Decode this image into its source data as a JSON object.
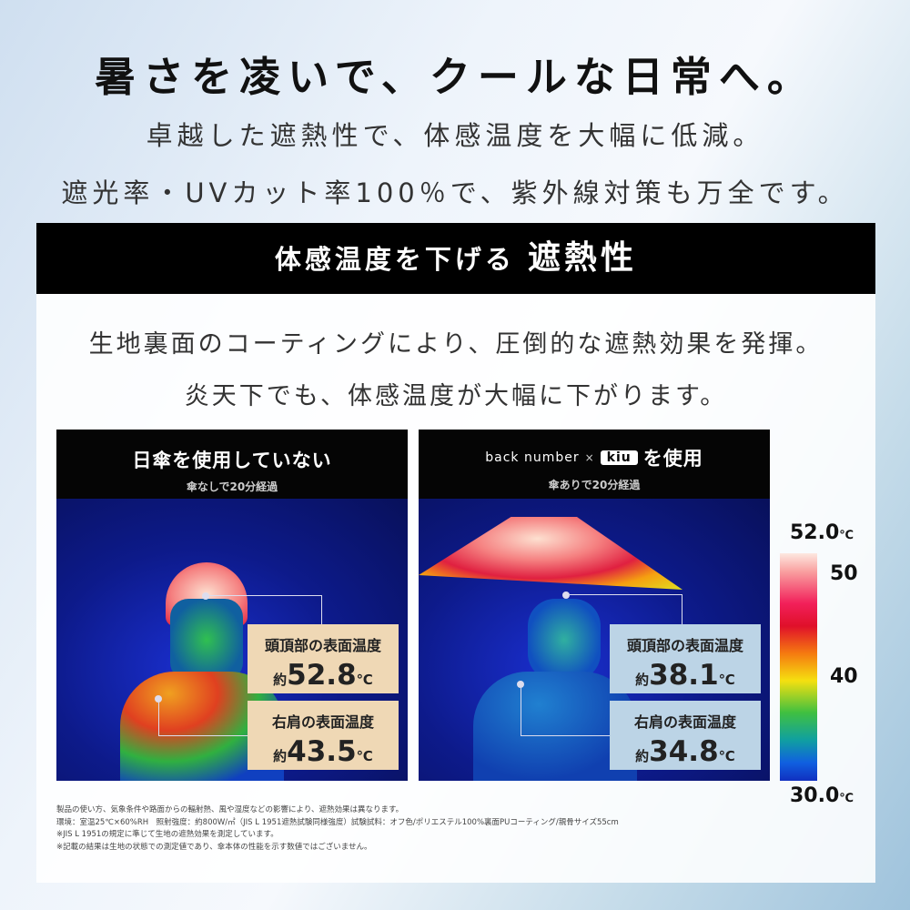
{
  "headline": "暑さを凌いで、クールな日常へ。",
  "subline1": "卓越した遮熱性で、体感温度を大幅に低減。",
  "subline2": "遮光率・UVカット率100％で、紫外線対策も万全です。",
  "banner": {
    "prefix": "体感温度を下げる",
    "emphasis": "遮熱性"
  },
  "desc1": "生地裏面のコーティングにより、圧倒的な遮熱効果を発揮。",
  "desc2": "炎天下でも、体感温度が大幅に下がります。",
  "left": {
    "title": "日傘を使用していない",
    "subtitle": "傘なしで20分経過",
    "head": {
      "label": "頭頂部の表面温度",
      "prefix": "約",
      "value": "52.8",
      "unit": "℃"
    },
    "shoulder": {
      "label": "右肩の表面温度",
      "prefix": "約",
      "value": "43.5",
      "unit": "℃"
    },
    "box_color": "#efd8b5"
  },
  "right": {
    "brand": "back number",
    "cross": "×",
    "logo": "kiu",
    "title_suffix": "を使用",
    "subtitle": "傘ありで20分経過",
    "head": {
      "label": "頭頂部の表面温度",
      "prefix": "約",
      "value": "38.1",
      "unit": "℃"
    },
    "shoulder": {
      "label": "右肩の表面温度",
      "prefix": "約",
      "value": "34.8",
      "unit": "℃"
    },
    "box_color": "#bcd4e6"
  },
  "scale": {
    "max": "52.0",
    "max_unit": "℃",
    "t50": "50",
    "t40": "40",
    "min": "30.0",
    "min_unit": "℃"
  },
  "footnotes": [
    "製品の使い方、気象条件や路面からの輻射熱、風や湿度などの影響により、遮熱効果は異なります。",
    "環境：室温25℃×60%RH　照射強度：約800W/㎡（JIS L 1951遮熱試験同様強度）試験試料：オフ色/ポリエステル100%裏面PUコーティング/親骨サイズ55cm",
    "※JIS L 1951の規定に準じて生地の遮熱効果を測定しています。",
    "※記載の結果は生地の状態での測定値であり、傘本体の性能を示す数値ではございません。"
  ]
}
